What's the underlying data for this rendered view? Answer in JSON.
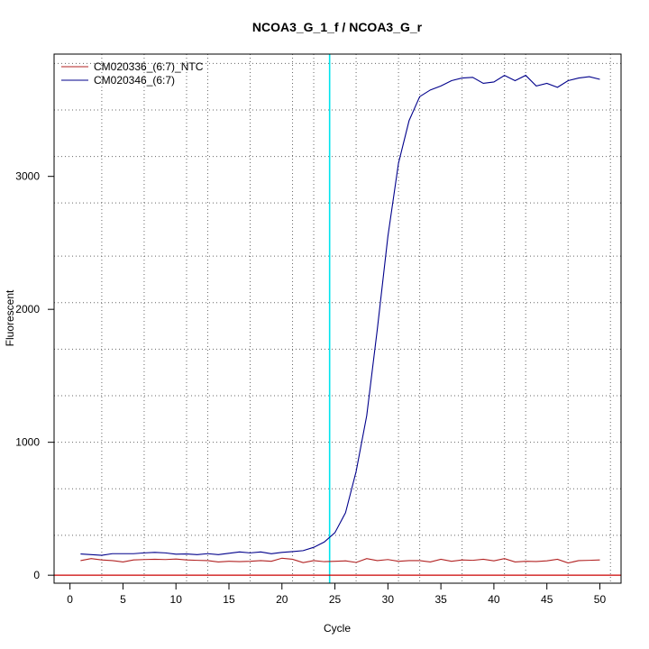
{
  "chart_data": {
    "type": "line",
    "title": "NCOA3_G_1_f / NCOA3_G_r",
    "xlabel": "Cycle",
    "ylabel": "Fluorescent",
    "xlim": [
      -1.5,
      52
    ],
    "ylim": [
      -60,
      3920
    ],
    "x_ticks": [
      0,
      5,
      10,
      15,
      20,
      25,
      30,
      35,
      40,
      45,
      50
    ],
    "y_ticks": [
      0,
      1000,
      2000,
      3000
    ],
    "x_grid": [
      3,
      7,
      11,
      13,
      17,
      21,
      23,
      27,
      31,
      33,
      37,
      41,
      43,
      47,
      51
    ],
    "y_grid": [
      300,
      650,
      1000,
      1350,
      1700,
      2050,
      2400,
      2800,
      3150,
      3500,
      3850
    ],
    "threshold_x": 24.5,
    "threshold_color": "#00e5ee",
    "baseline_y": 0,
    "baseline_color": "#cc0000",
    "legend_position": "top-left",
    "x": [
      1,
      2,
      3,
      4,
      5,
      6,
      7,
      8,
      9,
      10,
      11,
      12,
      13,
      14,
      15,
      16,
      17,
      18,
      19,
      20,
      21,
      22,
      23,
      24,
      25,
      26,
      27,
      28,
      29,
      30,
      31,
      32,
      33,
      34,
      35,
      36,
      37,
      38,
      39,
      40,
      41,
      42,
      43,
      44,
      45,
      46,
      47,
      48,
      49,
      50
    ],
    "series": [
      {
        "name": "CM020336_(6:7)_NTC",
        "color": "#b22222",
        "values": [
          110,
          125,
          115,
          110,
          100,
          115,
          118,
          120,
          118,
          122,
          115,
          112,
          110,
          100,
          105,
          102,
          105,
          110,
          105,
          128,
          120,
          95,
          110,
          102,
          105,
          108,
          96,
          125,
          110,
          118,
          105,
          110,
          110,
          100,
          120,
          105,
          115,
          112,
          120,
          108,
          125,
          100,
          105,
          103,
          108,
          120,
          92,
          110,
          112,
          115
        ]
      },
      {
        "name": "CM020346_(6:7)",
        "color": "#00008b",
        "values": [
          160,
          155,
          150,
          162,
          162,
          162,
          168,
          172,
          168,
          158,
          160,
          155,
          162,
          155,
          165,
          175,
          168,
          175,
          162,
          172,
          178,
          185,
          210,
          250,
          320,
          470,
          780,
          1200,
          1850,
          2550,
          3100,
          3420,
          3600,
          3650,
          3680,
          3720,
          3740,
          3745,
          3700,
          3710,
          3760,
          3720,
          3760,
          3680,
          3700,
          3670,
          3720,
          3740,
          3750,
          3730
        ]
      }
    ]
  }
}
